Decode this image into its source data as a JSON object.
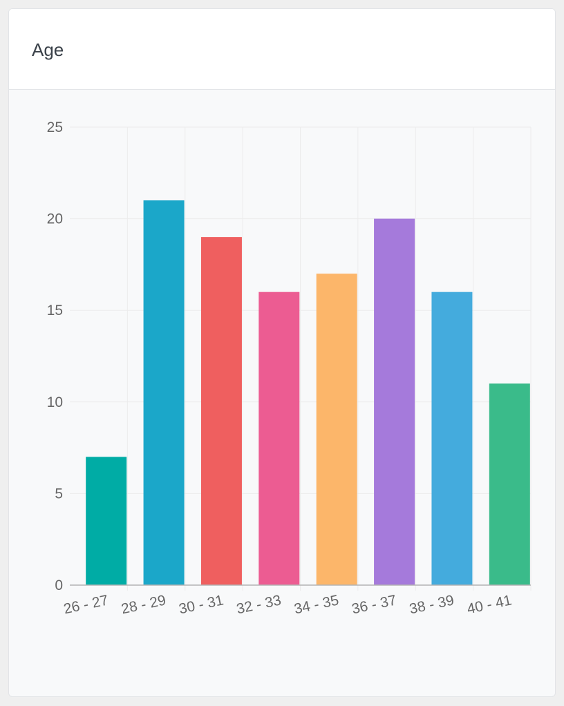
{
  "card": {
    "title": "Age"
  },
  "chart_data": {
    "type": "bar",
    "title": "",
    "xlabel": "",
    "ylabel": "",
    "categories": [
      "26 - 27",
      "28 - 29",
      "30 - 31",
      "32 - 33",
      "34 - 35",
      "36 - 37",
      "38 - 39",
      "40 - 41"
    ],
    "values": [
      7,
      21,
      19,
      16,
      17,
      20,
      16,
      11
    ],
    "colors": [
      "#00aca5",
      "#1ba7c9",
      "#ef5f5f",
      "#ec5c92",
      "#fcb66a",
      "#a57adb",
      "#44abdd",
      "#3abb8a"
    ],
    "ylim": [
      0,
      25
    ],
    "yticks": [
      "0",
      "5",
      "10",
      "15",
      "20",
      "25"
    ],
    "grid": true,
    "legend": "none"
  }
}
